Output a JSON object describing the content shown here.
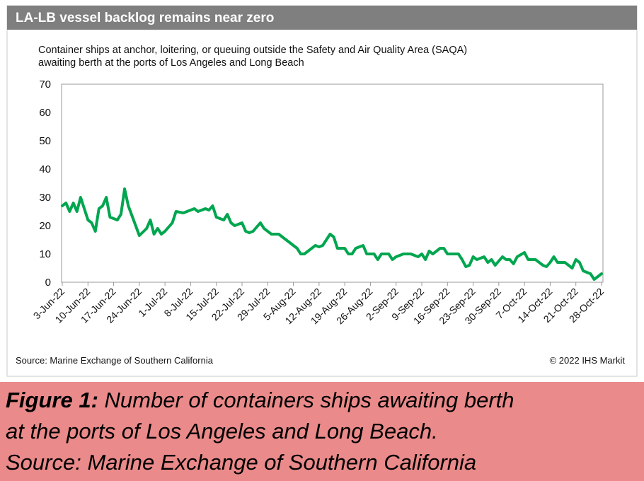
{
  "chart_data": {
    "type": "line",
    "title": "LA-LB vessel backlog remains near zero",
    "subtitle": [
      "Container ships at anchor, loitering, or queuing outside the Safety and Air Quality Area (SAQA)",
      "awaiting berth at the ports of Los Angeles and Long Beach"
    ],
    "source": "Source: Marine Exchange of Southern California",
    "credit": "© 2022 IHS Markit",
    "color": "#00a64f",
    "x": [
      "2022-06-03",
      "2022-06-04",
      "2022-06-05",
      "2022-06-06",
      "2022-06-07",
      "2022-06-08",
      "2022-06-10",
      "2022-06-11",
      "2022-06-12",
      "2022-06-13",
      "2022-06-14",
      "2022-06-15",
      "2022-06-16",
      "2022-06-18",
      "2022-06-19",
      "2022-06-20",
      "2022-06-21",
      "2022-06-23",
      "2022-06-24",
      "2022-06-26",
      "2022-06-27",
      "2022-06-28",
      "2022-06-29",
      "2022-06-30",
      "2022-07-01",
      "2022-07-03",
      "2022-07-04",
      "2022-07-06",
      "2022-07-07",
      "2022-07-09",
      "2022-07-10",
      "2022-07-12",
      "2022-07-13",
      "2022-07-14",
      "2022-07-15",
      "2022-07-17",
      "2022-07-18",
      "2022-07-19",
      "2022-07-20",
      "2022-07-22",
      "2022-07-23",
      "2022-07-24",
      "2022-07-25",
      "2022-07-27",
      "2022-07-28",
      "2022-07-29",
      "2022-07-30",
      "2022-08-01",
      "2022-08-02",
      "2022-08-03",
      "2022-08-05",
      "2022-08-06",
      "2022-08-07",
      "2022-08-08",
      "2022-08-10",
      "2022-08-11",
      "2022-08-12",
      "2022-08-13",
      "2022-08-15",
      "2022-08-16",
      "2022-08-17",
      "2022-08-19",
      "2022-08-20",
      "2022-08-21",
      "2022-08-22",
      "2022-08-24",
      "2022-08-25",
      "2022-08-26",
      "2022-08-27",
      "2022-08-28",
      "2022-08-29",
      "2022-08-31",
      "2022-09-01",
      "2022-09-02",
      "2022-09-04",
      "2022-09-05",
      "2022-09-06",
      "2022-09-08",
      "2022-09-09",
      "2022-09-10",
      "2022-09-11",
      "2022-09-12",
      "2022-09-14",
      "2022-09-15",
      "2022-09-16",
      "2022-09-17",
      "2022-09-19",
      "2022-09-20",
      "2022-09-21",
      "2022-09-22",
      "2022-09-23",
      "2022-09-24",
      "2022-09-26",
      "2022-09-27",
      "2022-09-28",
      "2022-09-29",
      "2022-10-01",
      "2022-10-02",
      "2022-10-03",
      "2022-10-04",
      "2022-10-05",
      "2022-10-07",
      "2022-10-08",
      "2022-10-09",
      "2022-10-10",
      "2022-10-12",
      "2022-10-13",
      "2022-10-14",
      "2022-10-15",
      "2022-10-16",
      "2022-10-17",
      "2022-10-18",
      "2022-10-20",
      "2022-10-21",
      "2022-10-22",
      "2022-10-23",
      "2022-10-25",
      "2022-10-26",
      "2022-10-27",
      "2022-10-28"
    ],
    "values": [
      27,
      28,
      25,
      28,
      25,
      30,
      22,
      21,
      18,
      26,
      27,
      30,
      23,
      22,
      24,
      33,
      27,
      20,
      16.5,
      19,
      22,
      17,
      19,
      17,
      18,
      21,
      25,
      24.5,
      25,
      26,
      25,
      26,
      25.5,
      27,
      23,
      22,
      24,
      21,
      20,
      21,
      18,
      17.5,
      18,
      21,
      19,
      18,
      17,
      17,
      16,
      15,
      13,
      12,
      10,
      10,
      12,
      13,
      12.5,
      13,
      17,
      16,
      12,
      12,
      10,
      10,
      12,
      13,
      10,
      10,
      10,
      8,
      10,
      10,
      8,
      9,
      10,
      10,
      10,
      9,
      10,
      8,
      11,
      10,
      12,
      12,
      10,
      10,
      10,
      8,
      5.5,
      6,
      9,
      8,
      9,
      7,
      8,
      6,
      9,
      8,
      8,
      6.5,
      9,
      10.5,
      8,
      8,
      8,
      6,
      5.5,
      7,
      9,
      7,
      7,
      7,
      5,
      8,
      7,
      4,
      3,
      1,
      2,
      3
    ],
    "xlim": [
      "2022-06-03",
      "2022-10-28"
    ],
    "xticks": [
      {
        "value": "2022-06-03",
        "label": "3-Jun-22"
      },
      {
        "value": "2022-06-10",
        "label": "10-Jun-22"
      },
      {
        "value": "2022-06-17",
        "label": "17-Jun-22"
      },
      {
        "value": "2022-06-24",
        "label": "24-Jun-22"
      },
      {
        "value": "2022-07-01",
        "label": "1-Jul-22"
      },
      {
        "value": "2022-07-08",
        "label": "8-Jul-22"
      },
      {
        "value": "2022-07-15",
        "label": "15-Jul-22"
      },
      {
        "value": "2022-07-22",
        "label": "22-Jul-22"
      },
      {
        "value": "2022-07-29",
        "label": "29-Jul-22"
      },
      {
        "value": "2022-08-05",
        "label": "5-Aug-22"
      },
      {
        "value": "2022-08-12",
        "label": "12-Aug-22"
      },
      {
        "value": "2022-08-19",
        "label": "19-Aug-22"
      },
      {
        "value": "2022-08-26",
        "label": "26-Aug-22"
      },
      {
        "value": "2022-09-02",
        "label": "2-Sep-22"
      },
      {
        "value": "2022-09-09",
        "label": "9-Sep-22"
      },
      {
        "value": "2022-09-16",
        "label": "16-Sep-22"
      },
      {
        "value": "2022-09-23",
        "label": "23-Sep-22"
      },
      {
        "value": "2022-09-30",
        "label": "30-Sep-22"
      },
      {
        "value": "2022-10-07",
        "label": "7-Oct-22"
      },
      {
        "value": "2022-10-14",
        "label": "14-Oct-22"
      },
      {
        "value": "2022-10-21",
        "label": "21-Oct-22"
      },
      {
        "value": "2022-10-28",
        "label": "28-Oct-22"
      }
    ],
    "ylim": [
      0,
      70
    ],
    "yticks": [
      0,
      10,
      20,
      30,
      40,
      50,
      60,
      70
    ],
    "grid": false
  },
  "caption": {
    "label": "Figure 1:",
    "lines": [
      "Number of containers ships awaiting berth",
      "at the ports of Los Angeles and Long Beach.",
      "Source: Marine Exchange of Southern California"
    ]
  }
}
